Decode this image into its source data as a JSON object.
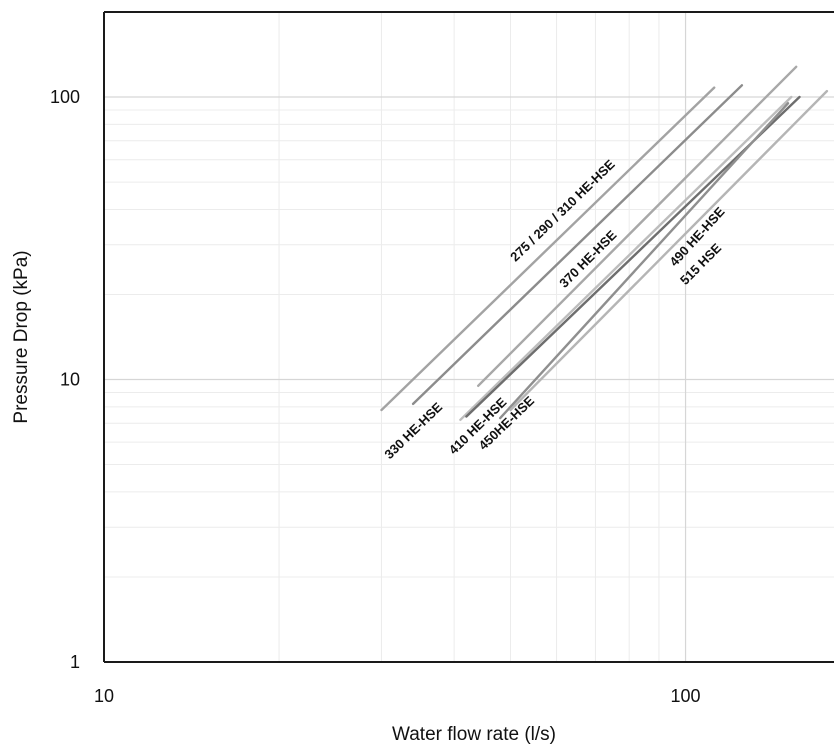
{
  "chart_data": {
    "type": "line",
    "title": "",
    "xlabel": "Water flow rate (l/s)",
    "ylabel": "Pressure Drop (kPa)",
    "x_scale": "log",
    "y_scale": "log",
    "xlim": [
      10,
      180
    ],
    "ylim": [
      1,
      200
    ],
    "x_ticks": [
      10,
      100
    ],
    "x_tick_labels": [
      "10",
      "100"
    ],
    "y_ticks": [
      1,
      10,
      100
    ],
    "y_tick_labels": [
      "1",
      "10",
      "100"
    ],
    "grid": true,
    "legend": "none",
    "series": [
      {
        "name": "275 / 290 / 310 HE-HSE",
        "color": "#a3a3a3",
        "x": [
          30,
          112
        ],
        "y": [
          7.8,
          108
        ]
      },
      {
        "name": "330 HE-HSE",
        "color": "#8c8c8c",
        "x": [
          34,
          125
        ],
        "y": [
          8.2,
          110
        ]
      },
      {
        "name": "370 HE-HSE",
        "color": "#a8a8a8",
        "x": [
          44,
          155
        ],
        "y": [
          9.5,
          128
        ]
      },
      {
        "name": "410 HE-HSE",
        "color": "#bdbdbd",
        "x": [
          41,
          152
        ],
        "y": [
          7.2,
          100
        ]
      },
      {
        "name": "450HE-HSE",
        "color": "#6e6e6e",
        "x": [
          42,
          157
        ],
        "y": [
          7.4,
          100
        ]
      },
      {
        "name": "490 HE-HSE",
        "color": "#8f8f8f",
        "x": [
          48,
          150
        ],
        "y": [
          7.3,
          95
        ]
      },
      {
        "name": "515 HSE",
        "color": "#b5b5b5",
        "x": [
          50,
          175
        ],
        "y": [
          7.8,
          105
        ]
      }
    ],
    "annotations": [
      {
        "series": 0,
        "text": "275  / 290 / 310 HE-HSE"
      },
      {
        "series": 1,
        "text": "330 HE-HSE"
      },
      {
        "series": 2,
        "text": "370 HE-HSE"
      },
      {
        "series": 3,
        "text": "410 HE-HSE"
      },
      {
        "series": 4,
        "text": "450HE-HSE"
      },
      {
        "series": 5,
        "text": "490 HE-HSE"
      },
      {
        "series": 6,
        "text": "515 HSE"
      }
    ]
  }
}
